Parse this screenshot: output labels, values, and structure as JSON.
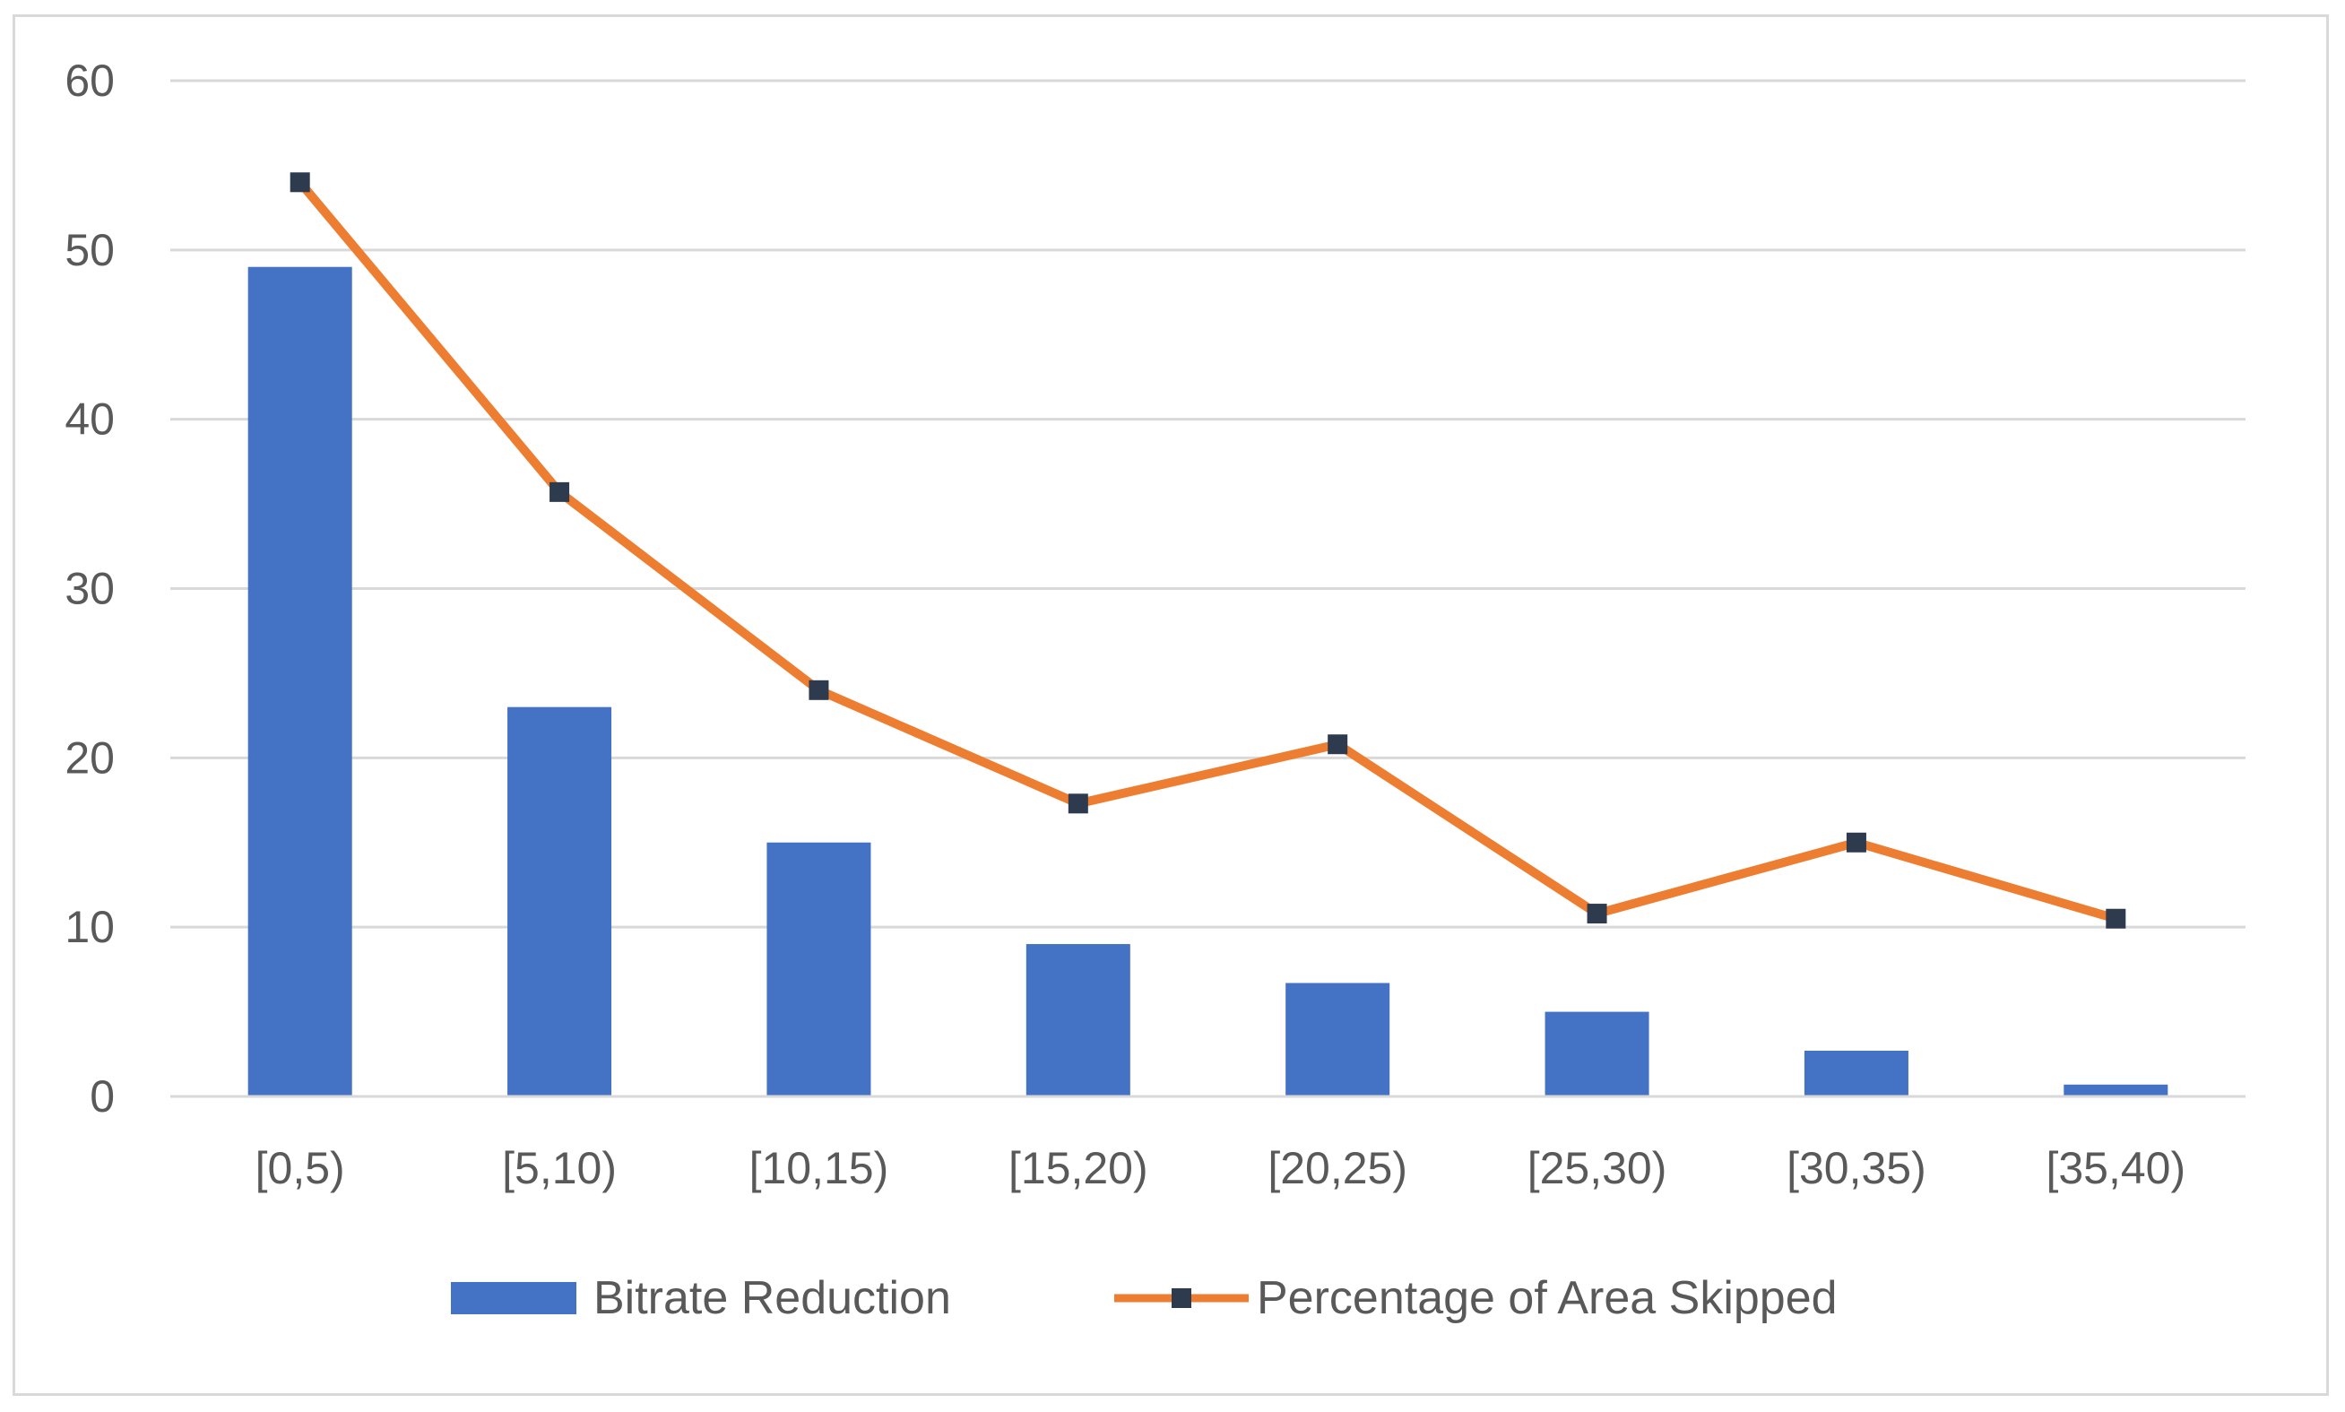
{
  "chart_data": {
    "type": "bar",
    "title": "",
    "xlabel": "",
    "ylabel": "",
    "categories": [
      "[0,5)",
      "[5,10)",
      "[10,15)",
      "[15,20)",
      "[20,25)",
      "[25,30)",
      "[30,35)",
      "[35,40)"
    ],
    "series": [
      {
        "name": "Bitrate Reduction",
        "kind": "bar",
        "color": "#4472C4",
        "values": [
          49,
          23,
          15,
          9,
          6.7,
          5,
          2.7,
          0.7
        ]
      },
      {
        "name": "Percentage of Area Skipped",
        "kind": "line",
        "color": "#ED7D31",
        "marker_color": "#2E3B4E",
        "values": [
          54,
          35.7,
          24,
          17.3,
          20.8,
          10.8,
          15,
          10.5
        ]
      }
    ],
    "ylim": [
      0,
      60
    ],
    "yticks": [
      0,
      10,
      20,
      30,
      40,
      50,
      60
    ],
    "grid": true,
    "legend_position": "bottom"
  }
}
